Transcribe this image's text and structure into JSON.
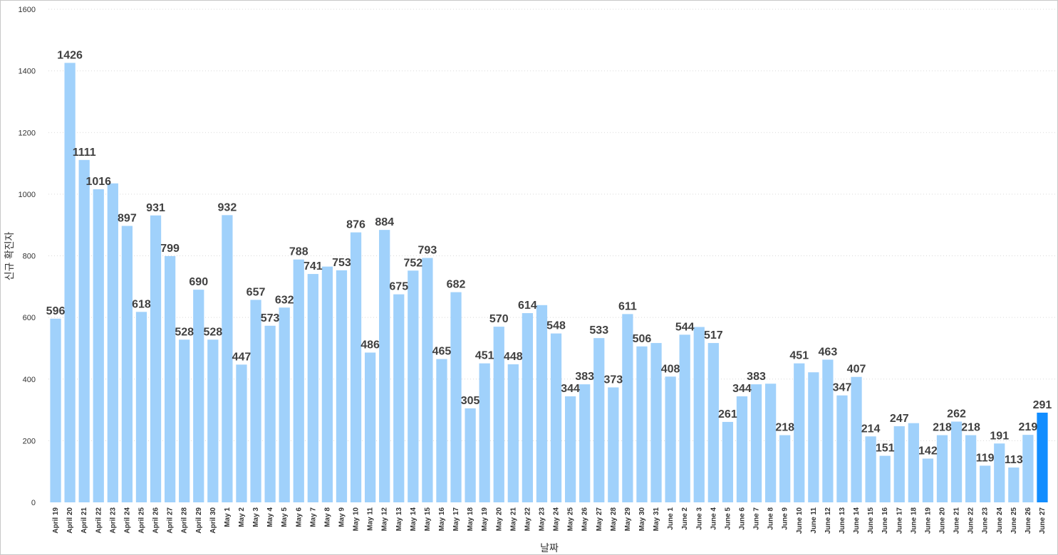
{
  "chart_data": {
    "type": "bar",
    "xlabel": "날짜",
    "ylabel": "신규 확진자",
    "ylim": [
      0,
      1600
    ],
    "yticks": [
      0,
      200,
      400,
      600,
      800,
      1000,
      1200,
      1400,
      1600
    ],
    "grid": true,
    "colors": {
      "bar": "#a0d1fb",
      "highlight": "#118dff",
      "label": "#404040"
    },
    "highlight_last": true,
    "categories": [
      "April 19",
      "April 20",
      "April 21",
      "April 22",
      "April 23",
      "April 24",
      "April 25",
      "April 26",
      "April 27",
      "April 28",
      "April 29",
      "April 30",
      "May 1",
      "May 2",
      "May 3",
      "May 4",
      "May 5",
      "May 6",
      "May 7",
      "May 8",
      "May 9",
      "May 10",
      "May 11",
      "May 12",
      "May 13",
      "May 14",
      "May 15",
      "May 16",
      "May 17",
      "May 18",
      "May 19",
      "May 20",
      "May 21",
      "May 22",
      "May 23",
      "May 24",
      "May 25",
      "May 26",
      "May 27",
      "May 28",
      "May 29",
      "May 30",
      "May 31",
      "June 1",
      "June 2",
      "June 3",
      "June 4",
      "June 5",
      "June 6",
      "June 7",
      "June 8",
      "June 9",
      "June 10",
      "June 11",
      "June 12",
      "June 13",
      "June 14",
      "June 15",
      "June 16",
      "June 17",
      "June 18",
      "June 19",
      "June 20",
      "June 21",
      "June 22",
      "June 23",
      "June 24",
      "June 25",
      "June 26",
      "June 27"
    ],
    "values": [
      596,
      1426,
      1111,
      1016,
      1035,
      897,
      618,
      931,
      799,
      528,
      690,
      528,
      932,
      447,
      657,
      573,
      632,
      788,
      741,
      765,
      753,
      876,
      486,
      884,
      675,
      752,
      793,
      465,
      682,
      305,
      451,
      570,
      448,
      614,
      640,
      548,
      344,
      383,
      533,
      373,
      611,
      506,
      517,
      408,
      544,
      569,
      517,
      261,
      344,
      383,
      385,
      218,
      451,
      422,
      463,
      347,
      407,
      214,
      151,
      247,
      257,
      142,
      218,
      262,
      218,
      119,
      191,
      113,
      219,
      291
    ],
    "labels": [
      "596",
      "1426",
      "1111",
      "1016",
      "",
      "897",
      "618",
      "931",
      "799",
      "528",
      "690",
      "528",
      "932",
      "447",
      "657",
      "573",
      "632",
      "788",
      "741",
      "",
      "753",
      "876",
      "486",
      "884",
      "675",
      "752",
      "793",
      "465",
      "682",
      "305",
      "451",
      "570",
      "448",
      "614",
      "",
      "548",
      "344",
      "383",
      "533",
      "373",
      "611",
      "506",
      "",
      "408",
      "544",
      "",
      "517",
      "261",
      "344",
      "383",
      "",
      "218",
      "451",
      "",
      "463",
      "347",
      "407",
      "214",
      "151",
      "247",
      "",
      "142",
      "218",
      "262",
      "218",
      "119",
      "191",
      "113",
      "219",
      "291"
    ]
  }
}
